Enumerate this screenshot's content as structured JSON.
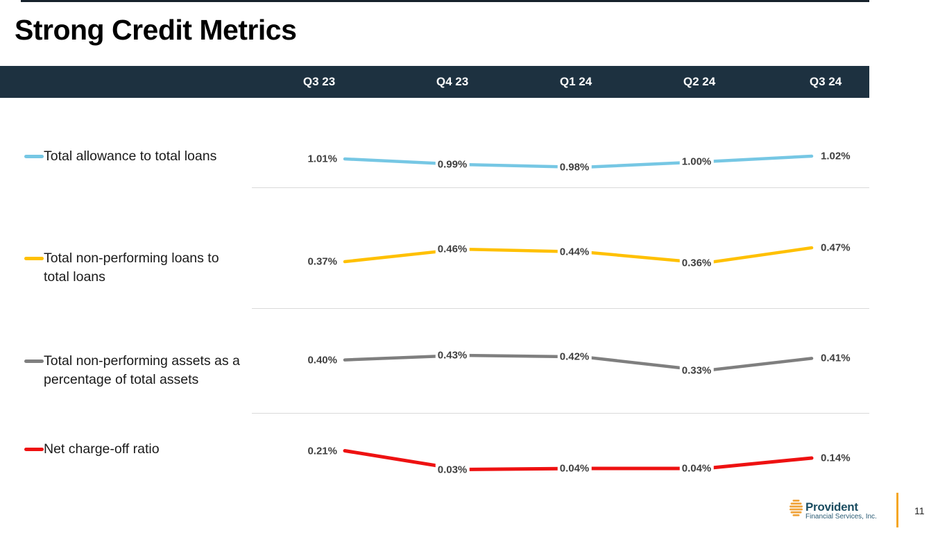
{
  "slide": {
    "title": "Strong Credit Metrics"
  },
  "header": {
    "quarters": [
      "Q3 23",
      "Q4 23",
      "Q1 24",
      "Q2 24",
      "Q3 24"
    ]
  },
  "chart_data": {
    "type": "line",
    "categories": [
      "Q3 23",
      "Q4 23",
      "Q1 24",
      "Q2 24",
      "Q3 24"
    ],
    "grid": false,
    "legend_position": "left",
    "data_labels": true,
    "series": [
      {
        "name": "Total allowance to total loans",
        "values": [
          1.01,
          0.99,
          0.98,
          1.0,
          1.02
        ],
        "labels": [
          "1.01%",
          "0.99%",
          "0.98%",
          "1.00%",
          "1.02%"
        ],
        "color": "#76C7E4"
      },
      {
        "name": "Total non-performing loans to total loans",
        "values": [
          0.37,
          0.46,
          0.44,
          0.36,
          0.47
        ],
        "labels": [
          "0.37%",
          "0.46%",
          "0.44%",
          "0.36%",
          "0.47%"
        ],
        "color": "#FFC000"
      },
      {
        "name": "Total non-performing assets as a percentage of total assets",
        "values": [
          0.4,
          0.43,
          0.42,
          0.33,
          0.41
        ],
        "labels": [
          "0.40%",
          "0.43%",
          "0.42%",
          "0.33%",
          "0.41%"
        ],
        "color": "#7F7F7F"
      },
      {
        "name": "Net charge-off ratio",
        "values": [
          0.21,
          0.03,
          0.04,
          0.04,
          0.14
        ],
        "labels": [
          "0.21%",
          "0.03%",
          "0.04%",
          "0.04%",
          "0.14%"
        ],
        "color": "#EE1111"
      }
    ]
  },
  "footer": {
    "logo_name": "Provident",
    "logo_subtext": "Financial Services, Inc.",
    "page_number": "11"
  },
  "colors": {
    "header_bar": "#1D3140",
    "separator": "#D9D9D9",
    "label_text": "#3F3F3F",
    "logo_navy": "#1B4D61",
    "accent_orange": "#F5A623"
  }
}
